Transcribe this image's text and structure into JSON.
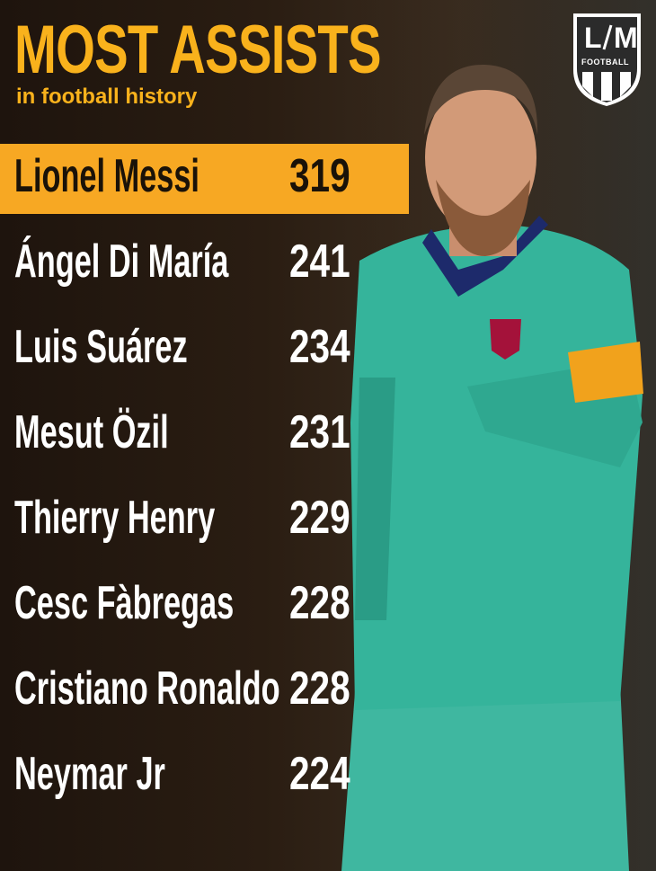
{
  "header": {
    "title": "MOST ASSISTS",
    "subtitle": "in football history"
  },
  "logo": {
    "left": "L",
    "right": "M",
    "caption": "FOOTBALL"
  },
  "table": {
    "rows": [
      [
        "Lionel Messi",
        "319"
      ],
      [
        "Ángel Di María",
        "241"
      ],
      [
        "Luis Suárez",
        "234"
      ],
      [
        "Mesut Özil",
        "231"
      ],
      [
        "Thierry Henry",
        "229"
      ],
      [
        "Cesc Fàbregas",
        "228"
      ],
      [
        "Cristiano Ronaldo",
        "228"
      ],
      [
        "Neymar Jr",
        "224"
      ]
    ]
  }
}
